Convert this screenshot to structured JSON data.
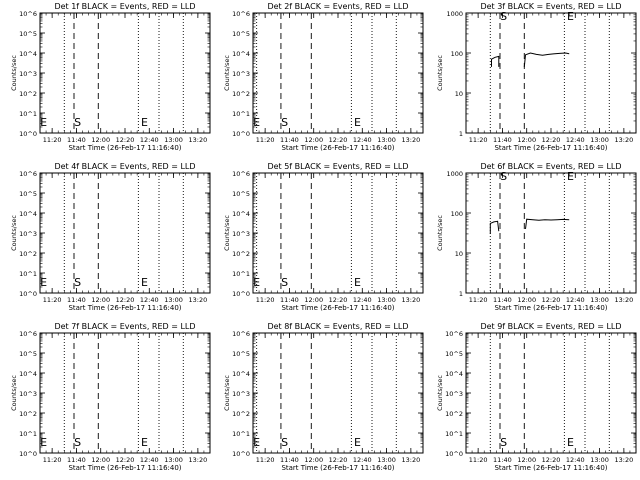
{
  "chart_data": [
    {
      "type": "line",
      "title": "Det 1f BLACK = Events, RED = LLD",
      "xlabel": "Start Time (26-Feb-17 11:16:40)",
      "ylabel": "Counts/sec",
      "ylim": [
        1,
        1000000
      ],
      "xlim": [
        "11:10",
        "13:30"
      ],
      "yscale": "log",
      "y_tick_labels": [
        "10^0",
        "10^1",
        "10^2",
        "10^3",
        "10^4",
        "10^5",
        "10^6"
      ],
      "x_tick_labels": [
        "11:20",
        "11:40",
        "12:00",
        "12:20",
        "12:40",
        "13:00",
        "13:20"
      ],
      "vlines": [
        {
          "x": "11:30",
          "style": "dotted"
        },
        {
          "x": "11:38",
          "style": "dashed"
        },
        {
          "x": "11:58",
          "style": "dashed"
        },
        {
          "x": "12:31",
          "style": "dotted"
        },
        {
          "x": "12:48",
          "style": "dotted"
        },
        {
          "x": "13:08",
          "style": "dotted"
        }
      ],
      "markers": [
        {
          "label": "E",
          "x": "11:13"
        },
        {
          "label": "S",
          "x": "11:41"
        },
        {
          "label": "E",
          "x": "12:36"
        }
      ],
      "series": []
    },
    {
      "type": "line",
      "title": "Det 2f BLACK = Events, RED = LLD",
      "xlabel": "Start Time (26-Feb-17 11:16:40)",
      "ylabel": "Counts/sec",
      "ylim": [
        1,
        1000000
      ],
      "xlim": [
        "11:10",
        "13:30"
      ],
      "yscale": "log",
      "y_tick_labels": [
        "10^0",
        "10^1",
        "10^2",
        "10^3",
        "10^4",
        "10^5",
        "10^6"
      ],
      "x_tick_labels": [
        "11:20",
        "11:40",
        "12:00",
        "12:20",
        "12:40",
        "13:00",
        "13:20"
      ],
      "vlines": [
        {
          "x": "11:13",
          "style": "dotted"
        },
        {
          "x": "11:33",
          "style": "dashed"
        },
        {
          "x": "11:58",
          "style": "dashed"
        },
        {
          "x": "12:31",
          "style": "dotted"
        },
        {
          "x": "12:48",
          "style": "dotted"
        },
        {
          "x": "13:08",
          "style": "dotted"
        }
      ],
      "markers": [
        {
          "label": "E",
          "x": "11:13"
        },
        {
          "label": "S",
          "x": "11:36"
        },
        {
          "label": "E",
          "x": "12:36"
        }
      ],
      "series": []
    },
    {
      "type": "line",
      "title": "Det 3f BLACK = Events, RED = LLD",
      "xlabel": "Start Time (26-Feb-17 11:16:40)",
      "ylabel": "Counts/sec",
      "ylim": [
        1,
        1000
      ],
      "xlim": [
        "11:10",
        "13:30"
      ],
      "yscale": "log",
      "y_tick_labels": [
        "1",
        "10",
        "100",
        "1000"
      ],
      "x_tick_labels": [
        "11:20",
        "11:40",
        "12:00",
        "12:20",
        "12:40",
        "13:00",
        "13:20"
      ],
      "vlines": [
        {
          "x": "11:30",
          "style": "dotted"
        },
        {
          "x": "11:38",
          "style": "dashed"
        },
        {
          "x": "11:58",
          "style": "dashed"
        },
        {
          "x": "12:31",
          "style": "dotted"
        },
        {
          "x": "12:48",
          "style": "dotted"
        },
        {
          "x": "13:08",
          "style": "dotted"
        }
      ],
      "markers": [
        {
          "label": "S",
          "x": "11:41",
          "pos": "top"
        },
        {
          "label": "E",
          "x": "12:36",
          "pos": "top"
        }
      ],
      "series": [
        {
          "color": "#000000",
          "segments": [
            [
              [
                "11:31",
                45
              ],
              [
                "11:31",
                70
              ],
              [
                "11:34",
                78
              ],
              [
                "11:37",
                82
              ],
              [
                "11:37",
                45
              ]
            ],
            [
              [
                "11:58",
                45
              ],
              [
                "11:59",
                90
              ],
              [
                "12:03",
                100
              ],
              [
                "12:08",
                92
              ],
              [
                "12:13",
                88
              ],
              [
                "12:18",
                92
              ],
              [
                "12:22",
                95
              ],
              [
                "12:27",
                98
              ],
              [
                "12:32",
                100
              ],
              [
                "12:35",
                96
              ]
            ]
          ]
        }
      ]
    },
    {
      "type": "line",
      "title": "Det 4f BLACK = Events, RED = LLD",
      "xlabel": "Start Time (26-Feb-17 11:16:40)",
      "ylabel": "Counts/sec",
      "ylim": [
        1,
        1000000
      ],
      "xlim": [
        "11:10",
        "13:30"
      ],
      "yscale": "log",
      "y_tick_labels": [
        "10^0",
        "10^1",
        "10^2",
        "10^3",
        "10^4",
        "10^5",
        "10^6"
      ],
      "x_tick_labels": [
        "11:20",
        "11:40",
        "12:00",
        "12:20",
        "12:40",
        "13:00",
        "13:20"
      ],
      "vlines": [
        {
          "x": "11:30",
          "style": "dotted"
        },
        {
          "x": "11:38",
          "style": "dashed"
        },
        {
          "x": "11:58",
          "style": "dashed"
        },
        {
          "x": "12:31",
          "style": "dotted"
        },
        {
          "x": "12:48",
          "style": "dotted"
        },
        {
          "x": "13:08",
          "style": "dotted"
        }
      ],
      "markers": [
        {
          "label": "E",
          "x": "11:13"
        },
        {
          "label": "S",
          "x": "11:41"
        },
        {
          "label": "E",
          "x": "12:36"
        }
      ],
      "series": []
    },
    {
      "type": "line",
      "title": "Det 5f BLACK = Events, RED = LLD",
      "xlabel": "Start Time (26-Feb-17 11:16:40)",
      "ylabel": "Counts/sec",
      "ylim": [
        1,
        1000000
      ],
      "xlim": [
        "11:10",
        "13:30"
      ],
      "yscale": "log",
      "y_tick_labels": [
        "10^0",
        "10^1",
        "10^2",
        "10^3",
        "10^4",
        "10^5",
        "10^6"
      ],
      "x_tick_labels": [
        "11:20",
        "11:40",
        "12:00",
        "12:20",
        "12:40",
        "13:00",
        "13:20"
      ],
      "vlines": [
        {
          "x": "11:13",
          "style": "dotted"
        },
        {
          "x": "11:33",
          "style": "dashed"
        },
        {
          "x": "11:58",
          "style": "dashed"
        },
        {
          "x": "12:31",
          "style": "dotted"
        },
        {
          "x": "12:48",
          "style": "dotted"
        },
        {
          "x": "13:08",
          "style": "dotted"
        }
      ],
      "markers": [
        {
          "label": "E",
          "x": "11:13"
        },
        {
          "label": "S",
          "x": "11:36"
        },
        {
          "label": "E",
          "x": "12:36"
        }
      ],
      "series": []
    },
    {
      "type": "line",
      "title": "Det 6f BLACK = Events, RED = LLD",
      "xlabel": "Start Time (26-Feb-17 11:16:40)",
      "ylabel": "Counts/sec",
      "ylim": [
        1,
        1000
      ],
      "xlim": [
        "11:10",
        "13:30"
      ],
      "yscale": "log",
      "y_tick_labels": [
        "1",
        "10",
        "100",
        "1000"
      ],
      "x_tick_labels": [
        "11:20",
        "11:40",
        "12:00",
        "12:20",
        "12:40",
        "13:00",
        "13:20"
      ],
      "vlines": [
        {
          "x": "11:30",
          "style": "dotted"
        },
        {
          "x": "11:38",
          "style": "dashed"
        },
        {
          "x": "11:58",
          "style": "dashed"
        },
        {
          "x": "12:31",
          "style": "dotted"
        },
        {
          "x": "12:48",
          "style": "dotted"
        },
        {
          "x": "13:08",
          "style": "dotted"
        }
      ],
      "markers": [
        {
          "label": "S",
          "x": "11:41",
          "pos": "top"
        },
        {
          "label": "E",
          "x": "12:36",
          "pos": "top"
        }
      ],
      "series": [
        {
          "color": "#000000",
          "segments": [
            [
              [
                "11:30",
                30
              ],
              [
                "11:30",
                55
              ],
              [
                "11:33",
                60
              ],
              [
                "11:36",
                62
              ],
              [
                "11:37",
                35
              ]
            ],
            [
              [
                "11:59",
                40
              ],
              [
                "12:00",
                70
              ],
              [
                "12:05",
                68
              ],
              [
                "12:10",
                66
              ],
              [
                "12:15",
                68
              ],
              [
                "12:20",
                67
              ],
              [
                "12:25",
                68
              ],
              [
                "12:30",
                69
              ],
              [
                "12:35",
                68
              ]
            ]
          ]
        }
      ]
    },
    {
      "type": "line",
      "title": "Det 7f BLACK = Events, RED = LLD",
      "xlabel": "Start Time (26-Feb-17 11:16:40)",
      "ylabel": "Counts/sec",
      "ylim": [
        1,
        1000000
      ],
      "xlim": [
        "11:10",
        "13:30"
      ],
      "yscale": "log",
      "y_tick_labels": [
        "10^0",
        "10^1",
        "10^2",
        "10^3",
        "10^4",
        "10^5",
        "10^6"
      ],
      "x_tick_labels": [
        "11:20",
        "11:40",
        "12:00",
        "12:20",
        "12:40",
        "13:00",
        "13:20"
      ],
      "vlines": [
        {
          "x": "11:30",
          "style": "dotted"
        },
        {
          "x": "11:38",
          "style": "dashed"
        },
        {
          "x": "11:58",
          "style": "dashed"
        },
        {
          "x": "12:31",
          "style": "dotted"
        },
        {
          "x": "12:48",
          "style": "dotted"
        },
        {
          "x": "13:08",
          "style": "dotted"
        }
      ],
      "markers": [
        {
          "label": "E",
          "x": "11:13"
        },
        {
          "label": "S",
          "x": "11:41"
        },
        {
          "label": "E",
          "x": "12:36"
        }
      ],
      "series": []
    },
    {
      "type": "line",
      "title": "Det 8f BLACK = Events, RED = LLD",
      "xlabel": "Start Time (26-Feb-17 11:16:40)",
      "ylabel": "Counts/sec",
      "ylim": [
        1,
        1000000
      ],
      "xlim": [
        "11:10",
        "13:30"
      ],
      "yscale": "log",
      "y_tick_labels": [
        "10^0",
        "10^1",
        "10^2",
        "10^3",
        "10^4",
        "10^5",
        "10^6"
      ],
      "x_tick_labels": [
        "11:20",
        "11:40",
        "12:00",
        "12:20",
        "12:40",
        "13:00",
        "13:20"
      ],
      "vlines": [
        {
          "x": "11:13",
          "style": "dotted"
        },
        {
          "x": "11:33",
          "style": "dashed"
        },
        {
          "x": "11:58",
          "style": "dashed"
        },
        {
          "x": "12:31",
          "style": "dotted"
        },
        {
          "x": "12:48",
          "style": "dotted"
        },
        {
          "x": "13:08",
          "style": "dotted"
        }
      ],
      "markers": [
        {
          "label": "E",
          "x": "11:13"
        },
        {
          "label": "S",
          "x": "11:36"
        },
        {
          "label": "E",
          "x": "12:36"
        }
      ],
      "series": []
    },
    {
      "type": "line",
      "title": "Det 9f BLACK = Events, RED = LLD",
      "xlabel": "Start Time (26-Feb-17 11:16:40)",
      "ylabel": "Counts/sec",
      "ylim": [
        1,
        1000000
      ],
      "xlim": [
        "11:10",
        "13:30"
      ],
      "yscale": "log",
      "y_tick_labels": [
        "10^0",
        "10^1",
        "10^2",
        "10^3",
        "10^4",
        "10^5",
        "10^6"
      ],
      "x_tick_labels": [
        "11:20",
        "11:40",
        "12:00",
        "12:20",
        "12:40",
        "13:00",
        "13:20"
      ],
      "vlines": [
        {
          "x": "11:30",
          "style": "dotted"
        },
        {
          "x": "11:38",
          "style": "dashed"
        },
        {
          "x": "11:58",
          "style": "dashed"
        },
        {
          "x": "12:31",
          "style": "dotted"
        },
        {
          "x": "12:48",
          "style": "dotted"
        },
        {
          "x": "13:08",
          "style": "dotted"
        }
      ],
      "markers": [
        {
          "label": "S",
          "x": "11:41"
        },
        {
          "label": "E",
          "x": "12:36"
        }
      ],
      "series": []
    }
  ]
}
